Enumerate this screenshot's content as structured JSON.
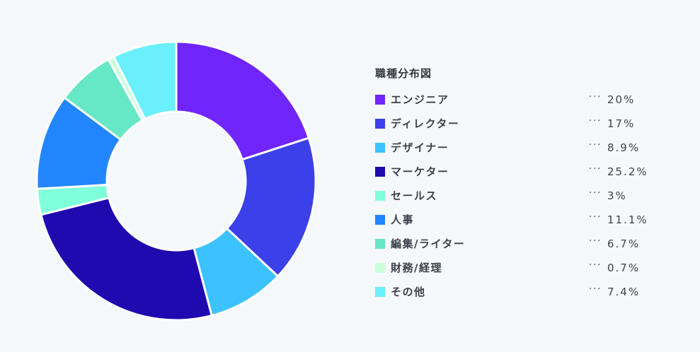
{
  "chart_data": {
    "type": "pie",
    "title": "職種分布図",
    "slices": [
      {
        "label": "エンジニア",
        "value": 20,
        "display": "20%",
        "color": "#7025fd"
      },
      {
        "label": "ディレクター",
        "value": 17,
        "display": "17%",
        "color": "#3b40e8"
      },
      {
        "label": "デザイナー",
        "value": 8.9,
        "display": "8.9%",
        "color": "#3cc2ff"
      },
      {
        "label": "マーケター",
        "value": 25.2,
        "display": "25.2%",
        "color": "#1f0aaf"
      },
      {
        "label": "セールス",
        "value": 3,
        "display": "3%",
        "color": "#80ffdb"
      },
      {
        "label": "人事",
        "value": 11.1,
        "display": "11.1%",
        "color": "#2186ff"
      },
      {
        "label": "編集/ライター",
        "value": 6.7,
        "display": "6.7%",
        "color": "#66e7c6"
      },
      {
        "label": "財務/経理",
        "value": 0.7,
        "display": "0.7%",
        "color": "#c9ffd8"
      },
      {
        "label": "その他",
        "value": 7.4,
        "display": "7.4%",
        "color": "#69f0fc"
      }
    ],
    "legend_position": "right",
    "legend_separator": "···",
    "donut": true
  }
}
